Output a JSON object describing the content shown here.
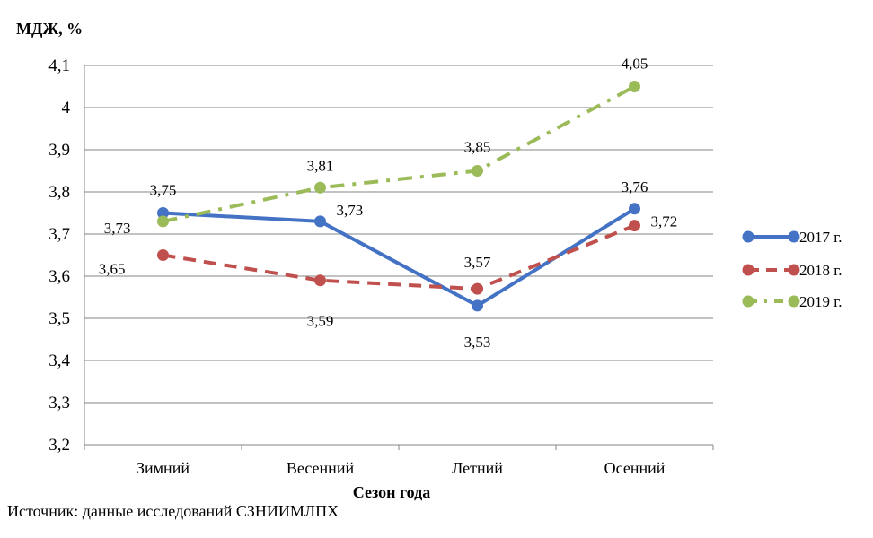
{
  "chart_data": {
    "type": "line",
    "ylabel": "МДЖ,  %",
    "xlabel": "Сезон  года",
    "categories": [
      "Зимний",
      "Весенний",
      "Летний",
      "Осенний"
    ],
    "ylim": [
      3.2,
      4.1
    ],
    "ytick_step": 0.1,
    "yticks": [
      "3,2",
      "3,3",
      "3,4",
      "3,5",
      "3,6",
      "3,7",
      "3,8",
      "3,9",
      "4",
      "4,1"
    ],
    "grid": true,
    "legend_position": "right",
    "series": [
      {
        "name": "2017 г.",
        "color": "#4472c4",
        "dash": "solid",
        "values": [
          3.75,
          3.73,
          3.53,
          3.76
        ],
        "labels": [
          "3,75",
          "3,73",
          "3,53",
          "3,76"
        ]
      },
      {
        "name": "2018 г.",
        "color": "#c0504d",
        "dash": "dash",
        "values": [
          3.65,
          3.59,
          3.57,
          3.72
        ],
        "labels": [
          "3,65",
          "3,59",
          "3,57",
          "3,72"
        ]
      },
      {
        "name": "2019 г.",
        "color": "#9bbb59",
        "dash": "dashdot",
        "values": [
          3.73,
          3.81,
          3.85,
          4.05
        ],
        "labels": [
          "3,73",
          "3,81",
          "3,85",
          "4,05"
        ]
      }
    ]
  },
  "source": "Источник: данные исследований СЗНИИМЛПХ"
}
